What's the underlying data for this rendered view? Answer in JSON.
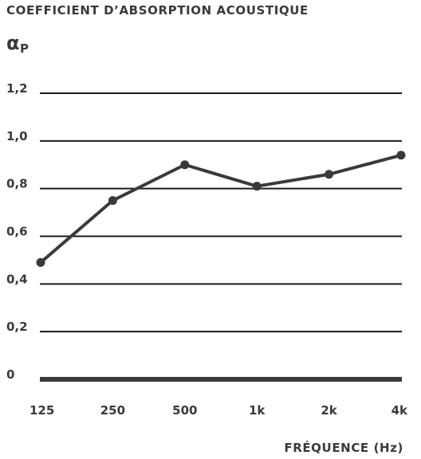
{
  "chart_data": {
    "type": "line",
    "title": "COEFFICIENT D’ABSORPTION ACOUSTIQUE",
    "ylabel": {
      "symbol": "α",
      "subscript": "P"
    },
    "xlabel": "FRÉQUENCE (Hz)",
    "categories": [
      "125",
      "250",
      "500",
      "1k",
      "2k",
      "4k"
    ],
    "series": [
      {
        "values": [
          0.49,
          0.75,
          0.9,
          0.81,
          0.86,
          0.94
        ]
      }
    ],
    "ylim": [
      0,
      1.2
    ],
    "yticks": [
      {
        "value": 1.2,
        "label": "1,2"
      },
      {
        "value": 1.0,
        "label": "1,0"
      },
      {
        "value": 0.8,
        "label": "0,8"
      },
      {
        "value": 0.6,
        "label": "0,6"
      },
      {
        "value": 0.4,
        "label": "0,4"
      },
      {
        "value": 0.2,
        "label": "0,2"
      },
      {
        "value": 0,
        "label": "0"
      }
    ],
    "grid": true,
    "colors": {
      "line": "#3a3a3a",
      "grid": "#1a1a1a",
      "text": "#3a3a3a"
    }
  }
}
